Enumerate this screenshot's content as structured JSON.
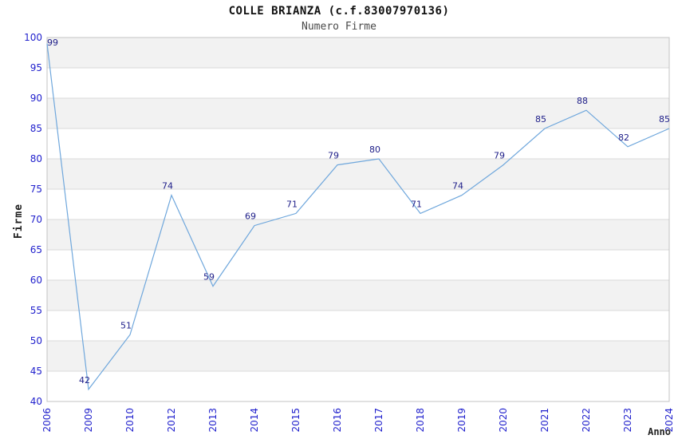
{
  "chart_data": {
    "type": "line",
    "title": "COLLE BRIANZA (c.f.83007970136)",
    "subtitle": "Numero Firme",
    "xlabel": "Anno",
    "ylabel": "Firme",
    "categories": [
      "2006",
      "2009",
      "2010",
      "2012",
      "2013",
      "2014",
      "2015",
      "2016",
      "2017",
      "2018",
      "2019",
      "2020",
      "2021",
      "2022",
      "2023",
      "2024"
    ],
    "values": [
      99,
      42,
      51,
      74,
      59,
      69,
      71,
      79,
      80,
      71,
      74,
      79,
      85,
      88,
      82,
      85
    ],
    "ylim": [
      40,
      100
    ],
    "ytick_step": 5,
    "grid": true,
    "bands": "alternating-horizontal-gray",
    "legend": "none",
    "data_labels": true
  },
  "colors": {
    "background": "#ffffff",
    "line": "#6fa7dc",
    "tick_label": "#2222cd",
    "data_label": "#20208a",
    "band": "#f2f2f2",
    "gridline": "#d9d9d9",
    "plot_border": "#c3c3c3",
    "title": "#111111",
    "subtitle": "#4a4a4a",
    "axis_title": "#222222"
  }
}
